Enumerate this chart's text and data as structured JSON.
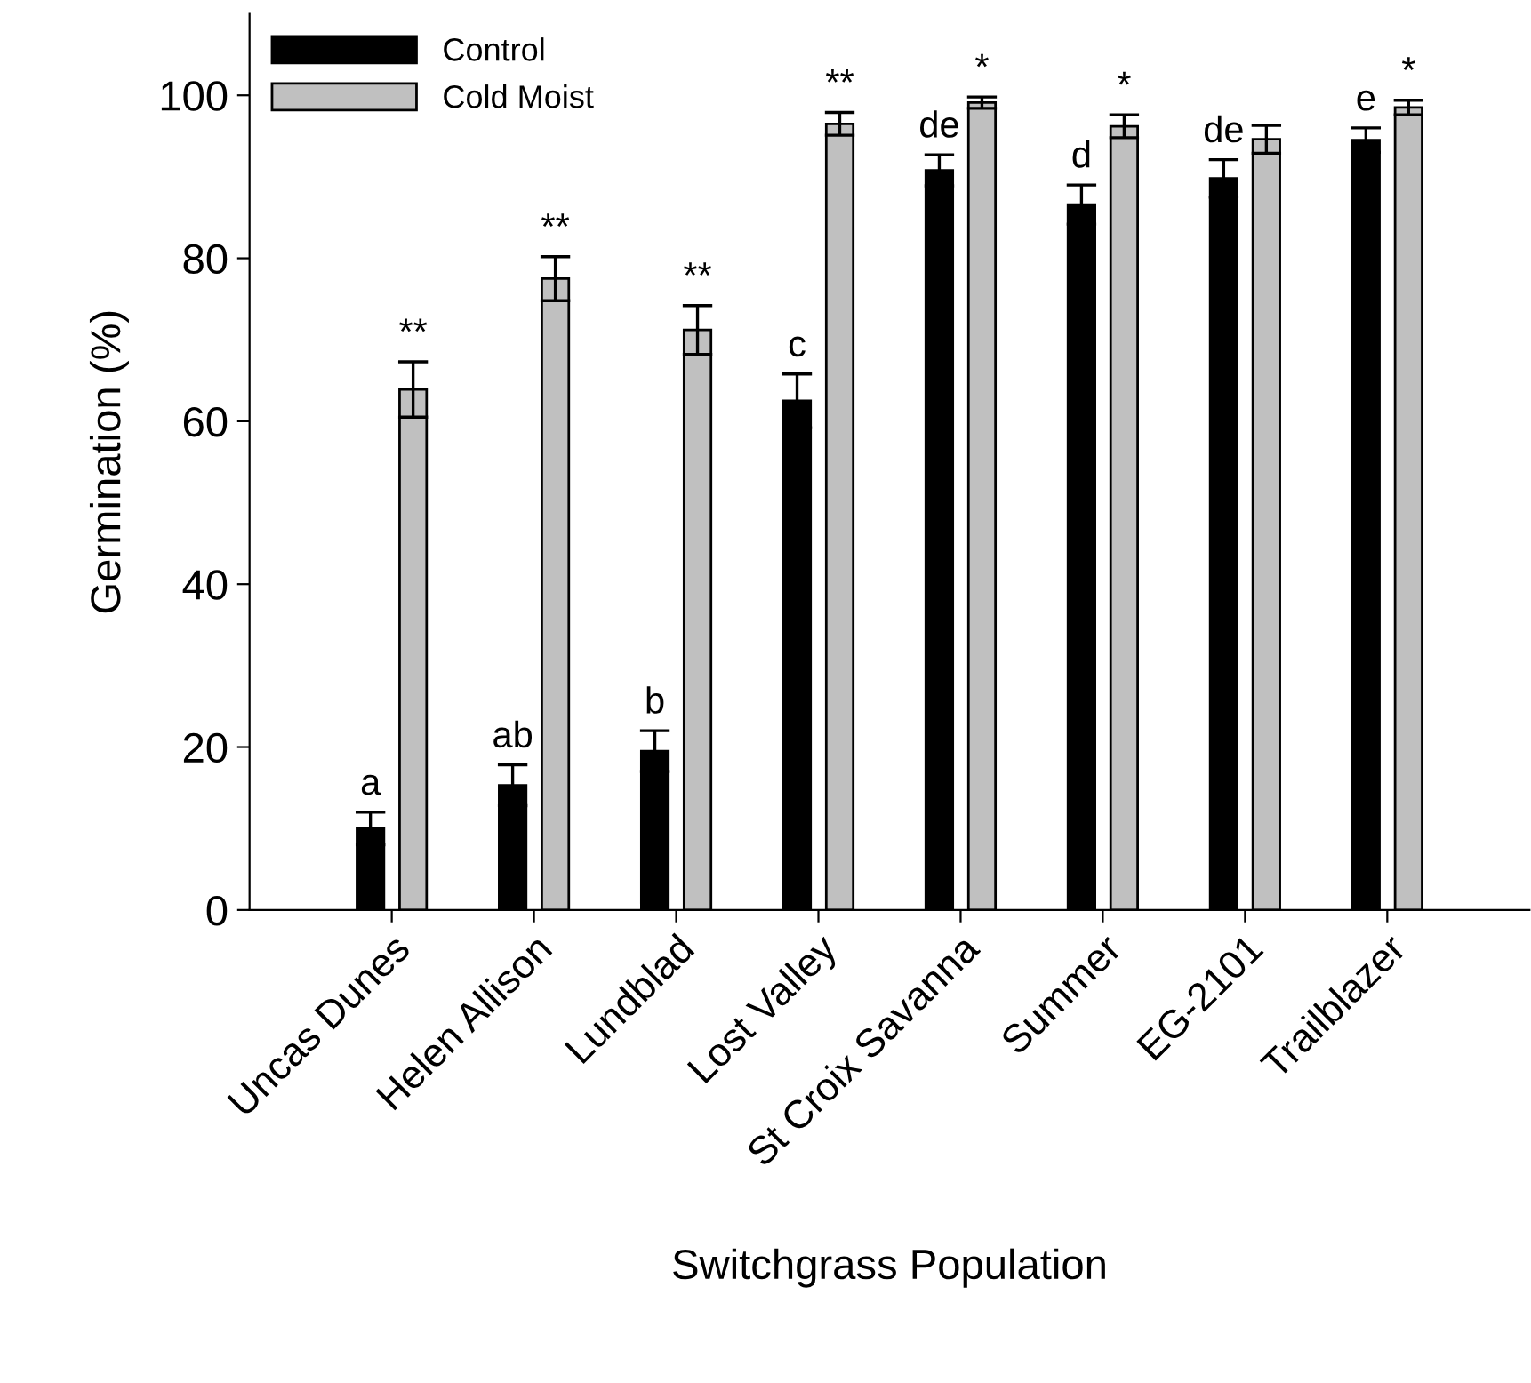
{
  "chart_data": {
    "type": "bar",
    "xlabel": "Switchgrass Population",
    "ylabel": "Germination (%)",
    "categories": [
      "Uncas Dunes",
      "Helen Allison",
      "Lundblad",
      "Lost Valley",
      "St Croix Savanna",
      "Summer",
      "EG-2101",
      "Trailblazer"
    ],
    "series": [
      {
        "name": "Control",
        "color": "#000000",
        "values": [
          10,
          15.3,
          19.5,
          62.5,
          90.8,
          86.6,
          89.8,
          94.5
        ],
        "errors": [
          2,
          2.5,
          2.5,
          3.3,
          1.9,
          2.4,
          2.3,
          1.5
        ],
        "value_labels": [
          "a",
          "ab",
          "b",
          "c",
          "de",
          "d",
          "de",
          "e"
        ]
      },
      {
        "name": "Cold Moist",
        "color": "#c0c0c0",
        "values": [
          63.9,
          77.5,
          71.2,
          96.5,
          99.1,
          96.2,
          94.6,
          98.5
        ],
        "errors": [
          3.4,
          2.7,
          3,
          1.4,
          0.7,
          1.4,
          1.7,
          0.9
        ],
        "value_labels": [
          "**",
          "**",
          "**",
          "**",
          "*",
          "*",
          null,
          "*"
        ]
      }
    ],
    "ylim": [
      0,
      110
    ],
    "yticks": [
      0,
      20,
      40,
      60,
      80,
      100
    ],
    "grid": false,
    "legend": "top left"
  }
}
